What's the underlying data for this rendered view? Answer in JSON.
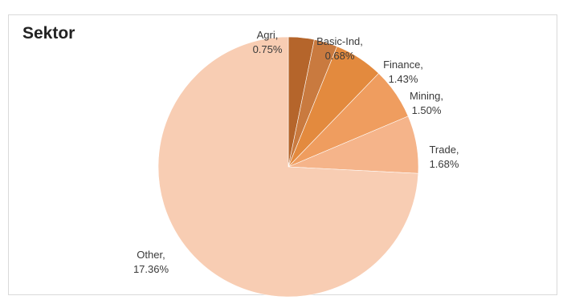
{
  "chart_data": {
    "type": "pie",
    "title": "Sektor",
    "slices": [
      {
        "name": "Agri",
        "value": 0.75,
        "label_line1": "Agri,",
        "label_line2": "0.75%",
        "color": "#b5652b"
      },
      {
        "name": "Basic-Ind",
        "value": 0.68,
        "label_line1": "Basic-Ind,",
        "label_line2": "0.68%",
        "color": "#c97a3f"
      },
      {
        "name": "Finance",
        "value": 1.43,
        "label_line1": "Finance,",
        "label_line2": "1.43%",
        "color": "#e38a3e"
      },
      {
        "name": "Mining",
        "value": 1.5,
        "label_line1": "Mining,",
        "label_line2": "1.50%",
        "color": "#ef9d5f"
      },
      {
        "name": "Trade",
        "value": 1.68,
        "label_line1": "Trade,",
        "label_line2": "1.68%",
        "color": "#f5b48a"
      },
      {
        "name": "Other",
        "value": 17.36,
        "label_line1": "Other,",
        "label_line2": "17.36%",
        "color": "#f8cdb3"
      }
    ],
    "legend": "none"
  }
}
